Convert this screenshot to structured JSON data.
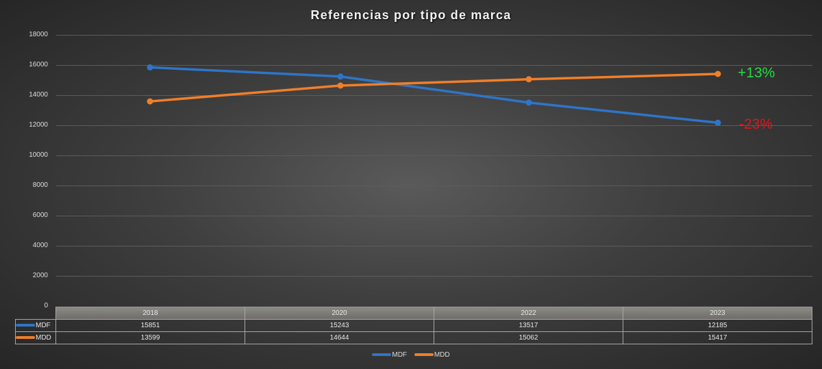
{
  "chart_data": {
    "type": "line",
    "title": "Referencias por tipo de marca",
    "categories": [
      "2018",
      "2020",
      "2022",
      "2023"
    ],
    "series": [
      {
        "name": "MDF",
        "color": "#2e75c8",
        "values": [
          15851,
          15243,
          13517,
          12185
        ]
      },
      {
        "name": "MDD",
        "color": "#f07f2a",
        "values": [
          13599,
          14644,
          15062,
          15417
        ]
      }
    ],
    "ylim": [
      0,
      18000
    ],
    "yticks": [
      0,
      2000,
      4000,
      6000,
      8000,
      10000,
      12000,
      14000,
      16000,
      18000
    ],
    "grid": true,
    "legend_position": "bottom",
    "data_table": true,
    "annotations": [
      {
        "text": "+13%",
        "series": "MDD",
        "color": "#22dd44"
      },
      {
        "text": "-23%",
        "series": "MDF",
        "color": "#e0151c"
      }
    ]
  },
  "title": "Referencias por tipo de marca",
  "yaxis": {
    "ticks": [
      "18000",
      "16000",
      "14000",
      "12000",
      "10000",
      "8000",
      "6000",
      "4000",
      "2000",
      "0"
    ]
  },
  "table": {
    "years": [
      "2018",
      "2020",
      "2022",
      "2023"
    ],
    "rows": [
      {
        "label": "MDF",
        "values": [
          "15851",
          "15243",
          "13517",
          "12185"
        ]
      },
      {
        "label": "MDD",
        "values": [
          "13599",
          "14644",
          "15062",
          "15417"
        ]
      }
    ]
  },
  "annotations": {
    "mdd": "+13%",
    "mdf": "-23%"
  },
  "legend": {
    "mdf": "MDF",
    "mdd": "MDD"
  }
}
